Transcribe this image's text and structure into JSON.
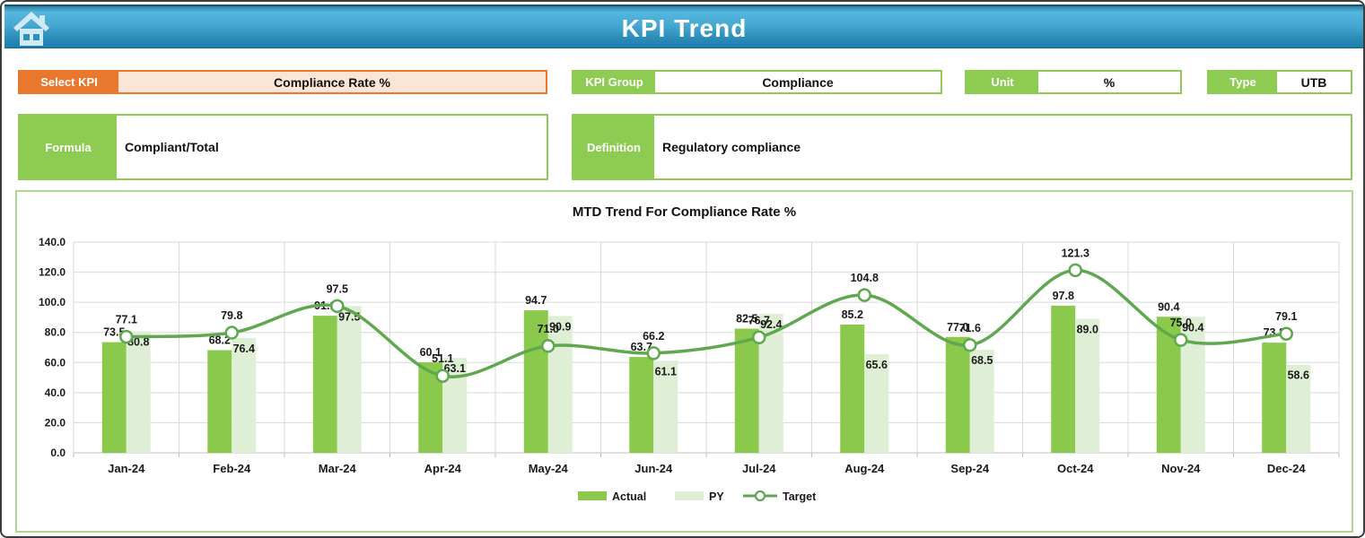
{
  "header": {
    "title": "KPI Trend"
  },
  "controls": {
    "select_kpi": {
      "label": "Select KPI",
      "value": "Compliance Rate %"
    },
    "kpi_group": {
      "label": "KPI Group",
      "value": "Compliance"
    },
    "unit": {
      "label": "Unit",
      "value": "%"
    },
    "type": {
      "label": "Type",
      "value": "UTB"
    },
    "formula": {
      "label": "Formula",
      "value": "Compliant/Total"
    },
    "definition": {
      "label": "Definition",
      "value": "Regulatory compliance"
    }
  },
  "colors": {
    "accent_orange": "#e8782e",
    "accent_peach": "#fbe5d6",
    "accent_green": "#8ecb53",
    "bar_actual": "#8bc94d",
    "bar_py": "#deefd6",
    "line_target": "#5fa850",
    "grid": "#d9d9d9",
    "axis": "#bfbfbf",
    "label_text": "#1a1a1a"
  },
  "chart_data": {
    "type": "bar",
    "subtype": "clustered-bars-with-smooth-line",
    "title": "MTD Trend For Compliance Rate %",
    "categories": [
      "Jan-24",
      "Feb-24",
      "Mar-24",
      "Apr-24",
      "May-24",
      "Jun-24",
      "Jul-24",
      "Aug-24",
      "Sep-24",
      "Oct-24",
      "Nov-24",
      "Dec-24"
    ],
    "series": [
      {
        "name": "Actual",
        "type": "bar",
        "values": [
          73.5,
          68.2,
          91.1,
          60.1,
          94.7,
          63.7,
          82.5,
          85.2,
          77.0,
          97.8,
          90.4,
          73.2
        ]
      },
      {
        "name": "PY",
        "type": "bar",
        "values": [
          80.8,
          76.4,
          97.5,
          63.1,
          90.9,
          61.1,
          92.4,
          65.6,
          68.5,
          89.0,
          90.4,
          58.6
        ]
      },
      {
        "name": "Target",
        "type": "line",
        "values": [
          77.1,
          79.8,
          97.5,
          51.1,
          71.0,
          66.2,
          76.7,
          104.8,
          71.6,
          121.3,
          75.0,
          79.1
        ]
      }
    ],
    "xlabel": "",
    "ylabel": "",
    "ylim": [
      0,
      140
    ],
    "ytick_step": 20,
    "ytick_format": "0.0",
    "grid": true,
    "legend_position": "bottom",
    "data_labels": {
      "Actual": "outside-end",
      "PY": "inside-end",
      "Target": "above"
    }
  }
}
